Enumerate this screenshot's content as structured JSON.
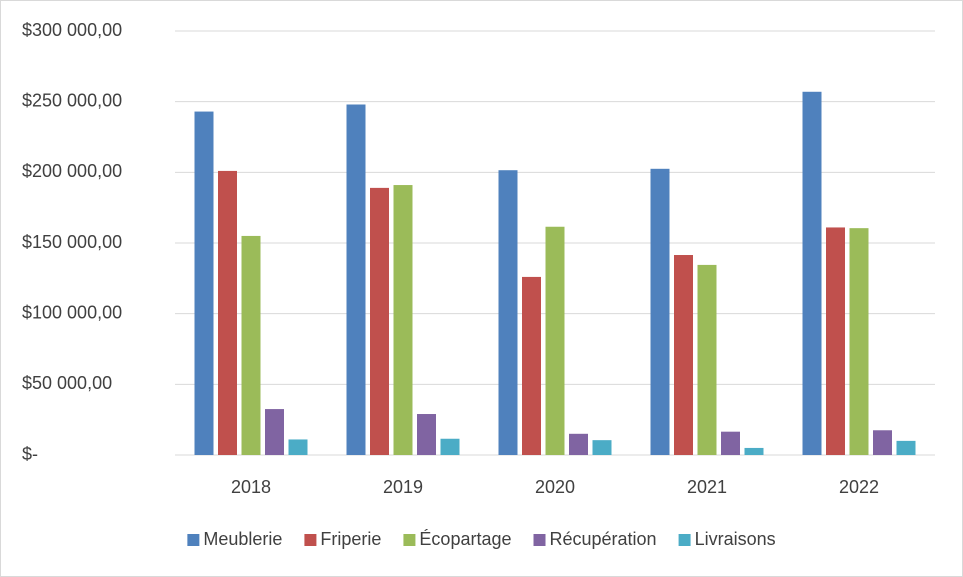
{
  "chart_data": {
    "type": "bar",
    "categories": [
      "2018",
      "2019",
      "2020",
      "2021",
      "2022"
    ],
    "series": [
      {
        "name": "Meublerie",
        "color": "#4f81bd",
        "values": [
          243000,
          248000,
          201500,
          202500,
          257000
        ]
      },
      {
        "name": "Friperie",
        "color": "#c0504d",
        "values": [
          201000,
          189000,
          126000,
          141500,
          161000
        ]
      },
      {
        "name": "Écopartage",
        "color": "#9bbb59",
        "values": [
          155000,
          191000,
          161500,
          134500,
          160500
        ]
      },
      {
        "name": "Récupération",
        "color": "#8064a2",
        "values": [
          32500,
          29000,
          15000,
          16500,
          17500
        ]
      },
      {
        "name": "Livraisons",
        "color": "#4bacc6",
        "values": [
          11000,
          11500,
          10500,
          5000,
          10000
        ]
      }
    ],
    "ylim": [
      0,
      300000
    ],
    "yticks": [
      {
        "value": 0,
        "label": "$-"
      },
      {
        "value": 50000,
        "label": "$50 000,00"
      },
      {
        "value": 100000,
        "label": "$100 000,00"
      },
      {
        "value": 150000,
        "label": "$150 000,00"
      },
      {
        "value": 200000,
        "label": "$200 000,00"
      },
      {
        "value": 250000,
        "label": "$250 000,00"
      },
      {
        "value": 300000,
        "label": "$300 000,00"
      }
    ],
    "grid": true,
    "legend": "bottom"
  }
}
